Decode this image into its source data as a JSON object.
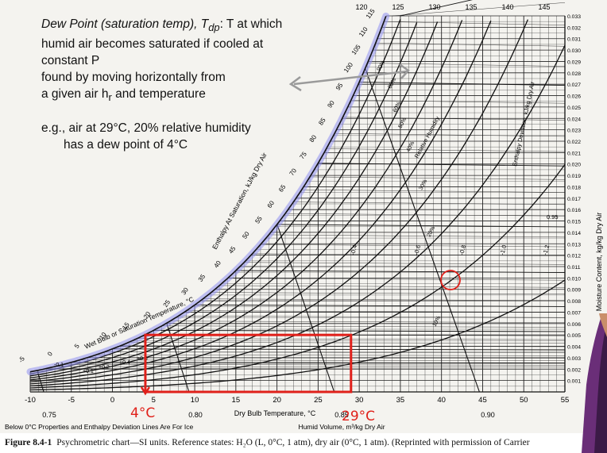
{
  "notes": {
    "line1": "Dew Point (saturation temp), T",
    "line1_sub": "dp",
    "line1_tail": ": T at which",
    "line2": "humid air becomes saturated if cooled at",
    "line3": "constant P",
    "line4": "found by moving horizontally from",
    "line5a": "a given air h",
    "line5_sub": "r",
    "line5b": " and temperature",
    "example1": "e.g., air at 29°C, 20% relative humidity",
    "example2": "has a dew point of 4°C"
  },
  "handwriting": {
    "left_label": "4°C",
    "right_label": "29°C"
  },
  "caption": {
    "label": "Figure 8.4-1",
    "text": "Psychrometric chart—SI units. Reference states: H₂O (L, 0°C, 1 atm), dry air (0°C, 1 atm). (Reprinted with permission of Carrier"
  },
  "chart_data": {
    "type": "psychrometric",
    "xlabel": "Dry Bulb Temperature, °C",
    "ylabel": "Moisture Content, kg/kg Dry Air",
    "xlim": [
      -10,
      55
    ],
    "ylim": [
      0,
      0.033
    ],
    "x_ticks": [
      -10,
      -5,
      0,
      5,
      10,
      15,
      20,
      25,
      30,
      35,
      40,
      45,
      50,
      55
    ],
    "y_ticks": [
      0.001,
      0.002,
      0.003,
      0.004,
      0.005,
      0.006,
      0.007,
      0.008,
      0.009,
      0.01,
      0.011,
      0.012,
      0.013,
      0.014,
      0.015,
      0.016,
      0.017,
      0.018,
      0.019,
      0.02,
      0.021,
      0.022,
      0.023,
      0.024,
      0.025,
      0.026,
      0.027,
      0.028,
      0.029,
      0.03,
      0.031,
      0.032,
      0.033
    ],
    "top_scale": [
      120,
      125,
      130,
      135,
      140,
      145
    ],
    "enthalpy_scale_labels": [
      -10,
      -5,
      0,
      5,
      10,
      15,
      20,
      25,
      30,
      35,
      40,
      45,
      50,
      55,
      60,
      65,
      70,
      75,
      80,
      85,
      90,
      95,
      100,
      105,
      110,
      115
    ],
    "saturation_curve_label": "Wet Bulb or Saturation Temperature, °C",
    "enthalpy_axis_label": "Enthalpy At Saturation, kJ/kg Dry Air",
    "humid_volume_label": "Humid Volume, m³/kg Dry Air",
    "humid_volume_ticks": [
      "0.75",
      "0.80",
      "0.85",
      "0.90"
    ],
    "relative_humidity_label": "Relative Humidity",
    "rh_curves_percent": [
      10,
      20,
      30,
      40,
      50,
      60,
      70,
      80,
      90
    ],
    "rh_labels": [
      "10%",
      "20%",
      "30%",
      "40%",
      "50%",
      "60%",
      "80%",
      "90%"
    ],
    "enthalpy_deviation_label": "Enthalpy Deviation, kJ/kg Dry Air",
    "enthalpy_deviation_values": [
      "-0.4",
      "-0.6",
      "-0.8",
      "-1.0",
      "-1.2"
    ],
    "low_region_values": [
      "-0.1",
      "+0.1",
      "+0.2",
      "+0.4",
      "+0.6"
    ],
    "right_scale_value": "0.95",
    "footnote": "Below 0°C Properties and Enthalpy Deviation Lines Are For Ice",
    "example_state": {
      "dry_bulb_C": 29,
      "relative_humidity_percent": 20,
      "dew_point_C": 4,
      "moisture_kg_per_kg": 0.005
    },
    "colors": {
      "saturation_highlight": "#8f8ff0",
      "annotation": "#e0201a",
      "arrow": "#9a9a9a",
      "lines": "#111111",
      "grid": "#222222"
    }
  }
}
